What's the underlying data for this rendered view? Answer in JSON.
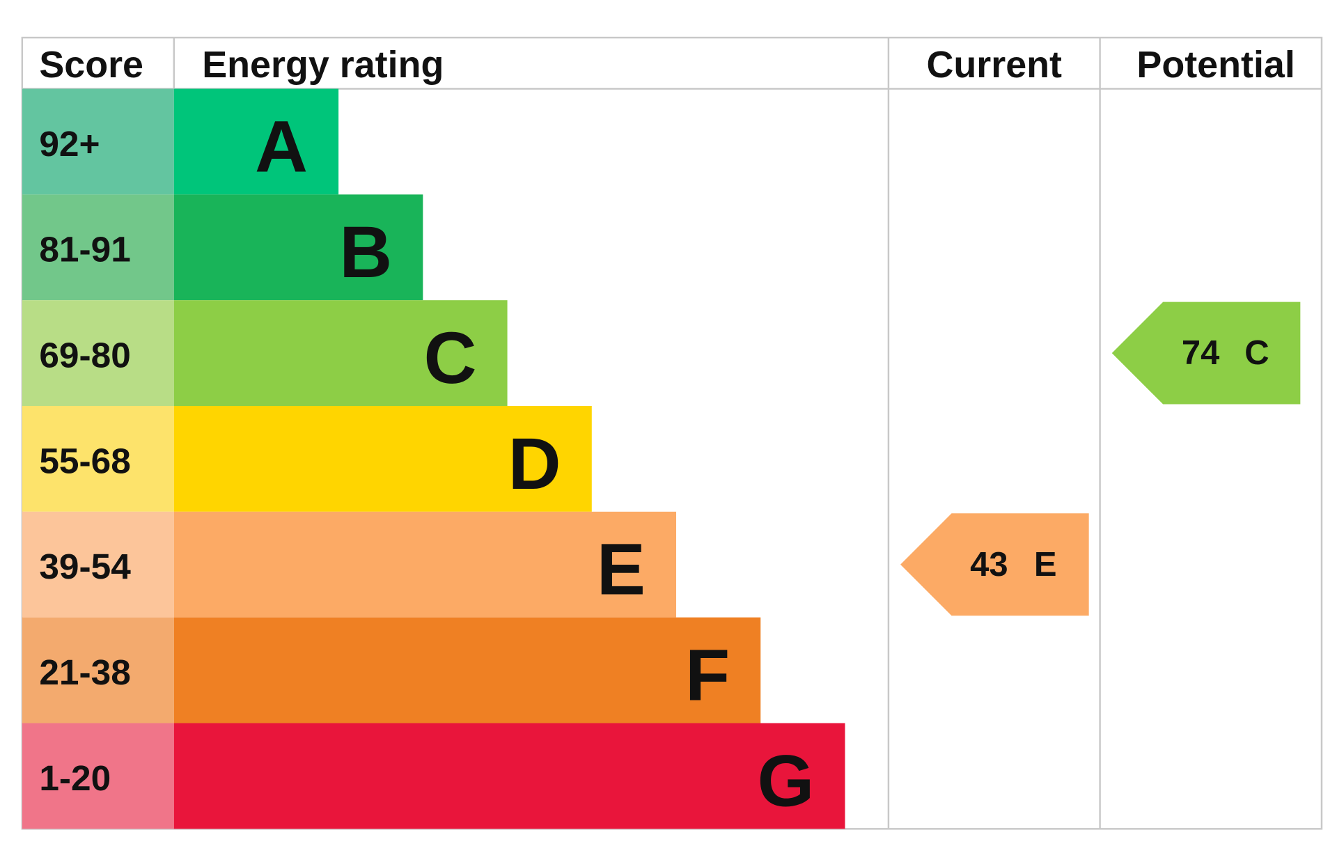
{
  "header": {
    "score": "Score",
    "energy_rating": "Energy rating",
    "current": "Current",
    "potential": "Potential"
  },
  "bands": [
    {
      "score": "92+",
      "letter": "A",
      "color": "#00c57a",
      "score_color": "#63c5a0"
    },
    {
      "score": "81-91",
      "letter": "B",
      "color": "#19b459",
      "score_color": "#72c78a"
    },
    {
      "score": "69-80",
      "letter": "C",
      "color": "#8dce46",
      "score_color": "#b8dd86"
    },
    {
      "score": "55-68",
      "letter": "D",
      "color": "#ffd500",
      "score_color": "#fde36b"
    },
    {
      "score": "39-54",
      "letter": "E",
      "color": "#fcaa65",
      "score_color": "#fcc59a"
    },
    {
      "score": "21-38",
      "letter": "F",
      "color": "#ef8023",
      "score_color": "#f3aa6e"
    },
    {
      "score": "1-20",
      "letter": "G",
      "color": "#e9153b",
      "score_color": "#f07589"
    }
  ],
  "current": {
    "score": 43,
    "rating": "E"
  },
  "potential": {
    "score": 74,
    "rating": "C"
  }
}
